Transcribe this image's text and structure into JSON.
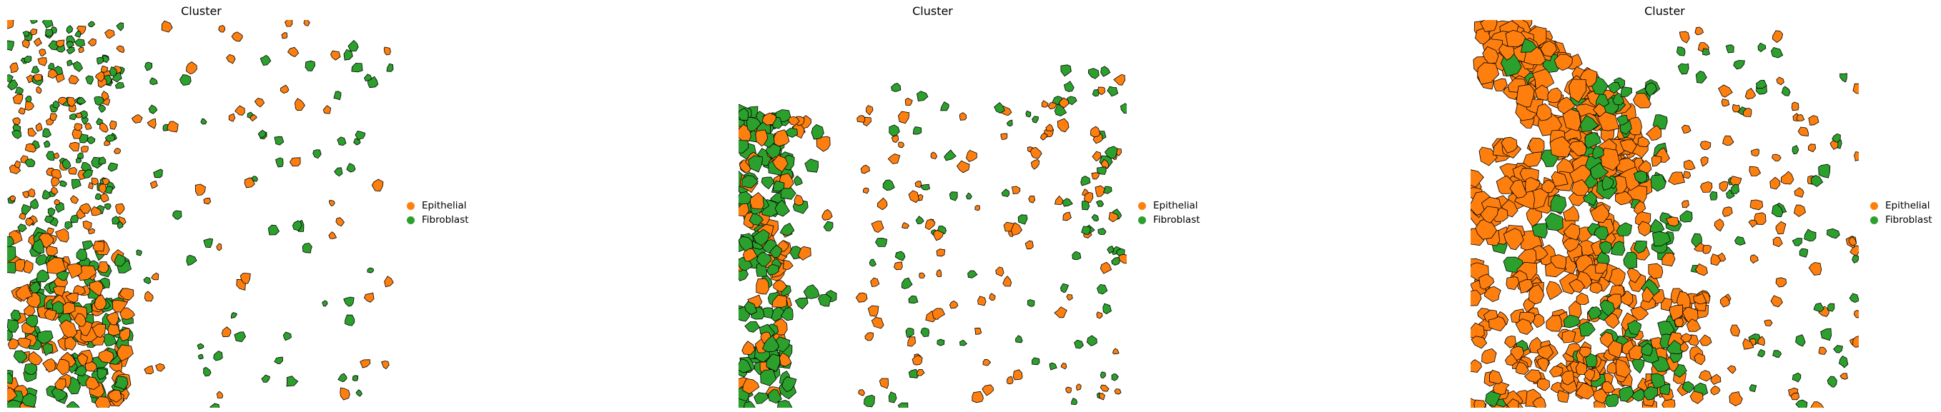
{
  "chart_data": [
    {
      "type": "scatter",
      "title": "Cluster",
      "legend": [
        "Epithelial",
        "Fibroblast"
      ],
      "legend_placement": "right",
      "grid": false,
      "axes_visible": false
    },
    {
      "type": "scatter",
      "title": "Cluster",
      "legend": [
        "Epithelial",
        "Fibroblast"
      ],
      "legend_placement": "right",
      "grid": false,
      "axes_visible": false
    },
    {
      "type": "scatter",
      "title": "Cluster",
      "legend": [
        "Epithelial",
        "Fibroblast"
      ],
      "legend_placement": "right",
      "grid": false,
      "axes_visible": false
    }
  ],
  "colors": {
    "Epithelial": "#ff7f0e",
    "Fibroblast": "#2ca02c",
    "outline": "#000000"
  }
}
